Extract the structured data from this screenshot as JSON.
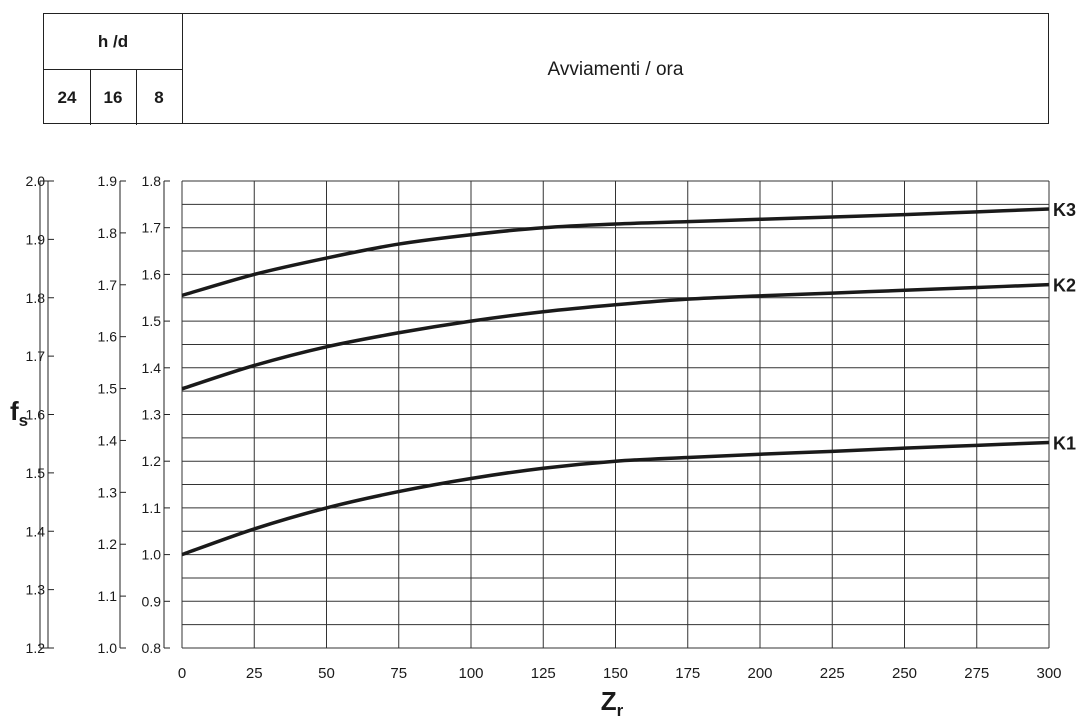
{
  "header": {
    "hd_label": "h /d",
    "columns": [
      "24",
      "16",
      "8"
    ],
    "title": "Avviamenti / ora"
  },
  "chart_data": {
    "type": "line",
    "xlabel": "Z",
    "xlabel_sub": "r",
    "ylabel": "f",
    "ylabel_sub": "s",
    "xlim": [
      0,
      300
    ],
    "x_ticks": [
      "0",
      "25",
      "50",
      "75",
      "100",
      "125",
      "150",
      "175",
      "200",
      "225",
      "250",
      "275",
      "300"
    ],
    "y_axes": [
      {
        "ticks": [
          "2.0",
          "1.9",
          "1.8",
          "1.7",
          "1.6",
          "1.5",
          "1.4",
          "1.3",
          "1.2"
        ]
      },
      {
        "ticks": [
          "1.9",
          "1.8",
          "1.7",
          "1.6",
          "1.5",
          "1.4",
          "1.3",
          "1.2",
          "1.1",
          "1.0"
        ]
      },
      {
        "ticks": [
          "1.8",
          "1.7",
          "1.6",
          "1.5",
          "1.4",
          "1.3",
          "1.2",
          "1.1",
          "1.0",
          "0.9",
          "0.8"
        ]
      }
    ],
    "ylim": [
      0.8,
      1.8
    ],
    "grid": true,
    "series": [
      {
        "name": "K1",
        "x": [
          0,
          25,
          50,
          75,
          100,
          125,
          150,
          175,
          200,
          225,
          250,
          275,
          300
        ],
        "values": [
          1.0,
          1.055,
          1.1,
          1.135,
          1.163,
          1.185,
          1.2,
          1.208,
          1.215,
          1.221,
          1.228,
          1.234,
          1.24
        ]
      },
      {
        "name": "K2",
        "x": [
          0,
          25,
          50,
          75,
          100,
          125,
          150,
          175,
          200,
          225,
          250,
          275,
          300
        ],
        "values": [
          1.355,
          1.405,
          1.445,
          1.475,
          1.5,
          1.52,
          1.535,
          1.547,
          1.554,
          1.56,
          1.566,
          1.572,
          1.578
        ]
      },
      {
        "name": "K3",
        "x": [
          0,
          25,
          50,
          75,
          100,
          125,
          150,
          175,
          200,
          225,
          250,
          275,
          300
        ],
        "values": [
          1.555,
          1.6,
          1.635,
          1.665,
          1.685,
          1.7,
          1.708,
          1.713,
          1.718,
          1.723,
          1.728,
          1.734,
          1.74
        ]
      }
    ]
  }
}
